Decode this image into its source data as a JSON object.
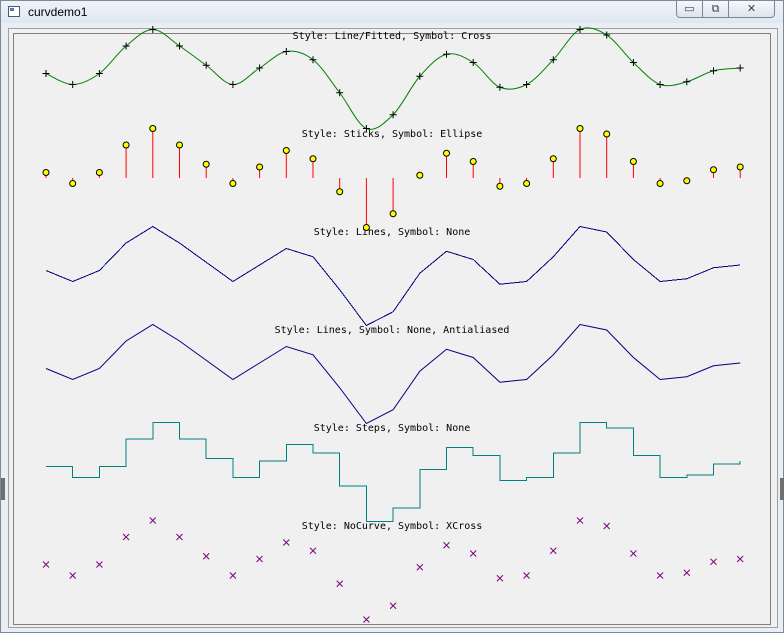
{
  "window": {
    "title": "curvdemo1",
    "min_glyph": "▭",
    "max_glyph": "⧉",
    "close_glyph": "✕"
  },
  "colors": {
    "cross_curve": "#008000",
    "cross_symbol": "#000000",
    "sticks": "#ff0000",
    "ellipse_fill": "#ffff00",
    "lines": "#000080",
    "steps": "#008080",
    "xcross": "#800080"
  },
  "chart_data": {
    "type": "line",
    "x": [
      0,
      1,
      2,
      3,
      4,
      5,
      6,
      7,
      8,
      9,
      10,
      11,
      12,
      13,
      14,
      15,
      16,
      17,
      18,
      19,
      20,
      21,
      22,
      23,
      24,
      25,
      26
    ],
    "values": [
      0.2,
      -0.2,
      0.2,
      1.2,
      1.8,
      1.2,
      0.5,
      -0.2,
      0.4,
      1.0,
      0.7,
      -0.5,
      -1.8,
      -1.3,
      0.1,
      0.9,
      0.6,
      -0.3,
      -0.2,
      0.7,
      1.8,
      1.6,
      0.6,
      -0.2,
      -0.1,
      0.3,
      0.4
    ],
    "curves": [
      {
        "label": "Style: Line/Fitted,  Symbol: Cross",
        "style": "line-fitted",
        "symbol": "cross"
      },
      {
        "label": "Style: Sticks,  Symbol: Ellipse",
        "style": "sticks",
        "symbol": "ellipse"
      },
      {
        "label": "Style: Lines,  Symbol: None",
        "style": "lines",
        "symbol": "none"
      },
      {
        "label": "Style: Lines,  Symbol: None, Antialiased",
        "style": "lines",
        "symbol": "none"
      },
      {
        "label": "Style: Steps,  Symbol: None",
        "style": "steps",
        "symbol": "none"
      },
      {
        "label": "Style: NoCurve,  Symbol: XCross",
        "style": "nocurve",
        "symbol": "xcross"
      }
    ]
  }
}
